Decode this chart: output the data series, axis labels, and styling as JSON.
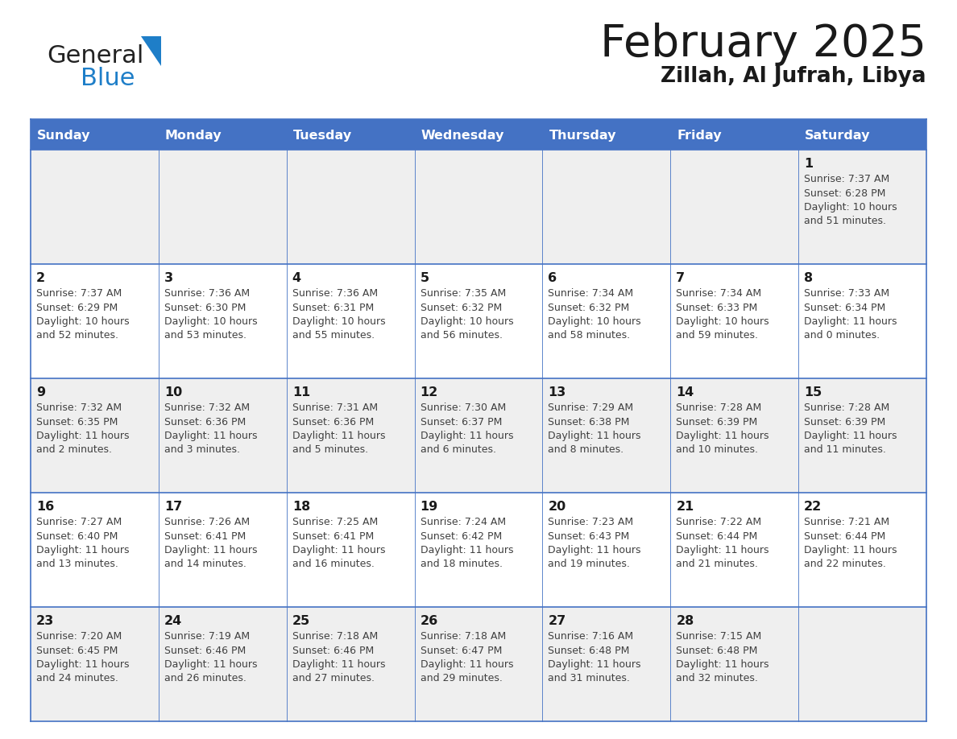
{
  "title": "February 2025",
  "subtitle": "Zillah, Al Jufrah, Libya",
  "header_bg_color": "#4472C4",
  "header_text_color": "#FFFFFF",
  "cell_bg_even": "#EFEFEF",
  "cell_bg_odd": "#FFFFFF",
  "border_color": "#4472C4",
  "text_color": "#404040",
  "day_num_color": "#1a1a1a",
  "days_of_week": [
    "Sunday",
    "Monday",
    "Tuesday",
    "Wednesday",
    "Thursday",
    "Friday",
    "Saturday"
  ],
  "logo_general_color": "#222222",
  "logo_blue_color": "#1e7ec8",
  "logo_triangle_color": "#1e7ec8",
  "calendar_data": [
    [
      null,
      null,
      null,
      null,
      null,
      null,
      {
        "day": 1,
        "sunrise": "7:37 AM",
        "sunset": "6:28 PM",
        "daylight": "10 hours\nand 51 minutes."
      }
    ],
    [
      {
        "day": 2,
        "sunrise": "7:37 AM",
        "sunset": "6:29 PM",
        "daylight": "10 hours\nand 52 minutes."
      },
      {
        "day": 3,
        "sunrise": "7:36 AM",
        "sunset": "6:30 PM",
        "daylight": "10 hours\nand 53 minutes."
      },
      {
        "day": 4,
        "sunrise": "7:36 AM",
        "sunset": "6:31 PM",
        "daylight": "10 hours\nand 55 minutes."
      },
      {
        "day": 5,
        "sunrise": "7:35 AM",
        "sunset": "6:32 PM",
        "daylight": "10 hours\nand 56 minutes."
      },
      {
        "day": 6,
        "sunrise": "7:34 AM",
        "sunset": "6:32 PM",
        "daylight": "10 hours\nand 58 minutes."
      },
      {
        "day": 7,
        "sunrise": "7:34 AM",
        "sunset": "6:33 PM",
        "daylight": "10 hours\nand 59 minutes."
      },
      {
        "day": 8,
        "sunrise": "7:33 AM",
        "sunset": "6:34 PM",
        "daylight": "11 hours\nand 0 minutes."
      }
    ],
    [
      {
        "day": 9,
        "sunrise": "7:32 AM",
        "sunset": "6:35 PM",
        "daylight": "11 hours\nand 2 minutes."
      },
      {
        "day": 10,
        "sunrise": "7:32 AM",
        "sunset": "6:36 PM",
        "daylight": "11 hours\nand 3 minutes."
      },
      {
        "day": 11,
        "sunrise": "7:31 AM",
        "sunset": "6:36 PM",
        "daylight": "11 hours\nand 5 minutes."
      },
      {
        "day": 12,
        "sunrise": "7:30 AM",
        "sunset": "6:37 PM",
        "daylight": "11 hours\nand 6 minutes."
      },
      {
        "day": 13,
        "sunrise": "7:29 AM",
        "sunset": "6:38 PM",
        "daylight": "11 hours\nand 8 minutes."
      },
      {
        "day": 14,
        "sunrise": "7:28 AM",
        "sunset": "6:39 PM",
        "daylight": "11 hours\nand 10 minutes."
      },
      {
        "day": 15,
        "sunrise": "7:28 AM",
        "sunset": "6:39 PM",
        "daylight": "11 hours\nand 11 minutes."
      }
    ],
    [
      {
        "day": 16,
        "sunrise": "7:27 AM",
        "sunset": "6:40 PM",
        "daylight": "11 hours\nand 13 minutes."
      },
      {
        "day": 17,
        "sunrise": "7:26 AM",
        "sunset": "6:41 PM",
        "daylight": "11 hours\nand 14 minutes."
      },
      {
        "day": 18,
        "sunrise": "7:25 AM",
        "sunset": "6:41 PM",
        "daylight": "11 hours\nand 16 minutes."
      },
      {
        "day": 19,
        "sunrise": "7:24 AM",
        "sunset": "6:42 PM",
        "daylight": "11 hours\nand 18 minutes."
      },
      {
        "day": 20,
        "sunrise": "7:23 AM",
        "sunset": "6:43 PM",
        "daylight": "11 hours\nand 19 minutes."
      },
      {
        "day": 21,
        "sunrise": "7:22 AM",
        "sunset": "6:44 PM",
        "daylight": "11 hours\nand 21 minutes."
      },
      {
        "day": 22,
        "sunrise": "7:21 AM",
        "sunset": "6:44 PM",
        "daylight": "11 hours\nand 22 minutes."
      }
    ],
    [
      {
        "day": 23,
        "sunrise": "7:20 AM",
        "sunset": "6:45 PM",
        "daylight": "11 hours\nand 24 minutes."
      },
      {
        "day": 24,
        "sunrise": "7:19 AM",
        "sunset": "6:46 PM",
        "daylight": "11 hours\nand 26 minutes."
      },
      {
        "day": 25,
        "sunrise": "7:18 AM",
        "sunset": "6:46 PM",
        "daylight": "11 hours\nand 27 minutes."
      },
      {
        "day": 26,
        "sunrise": "7:18 AM",
        "sunset": "6:47 PM",
        "daylight": "11 hours\nand 29 minutes."
      },
      {
        "day": 27,
        "sunrise": "7:16 AM",
        "sunset": "6:48 PM",
        "daylight": "11 hours\nand 31 minutes."
      },
      {
        "day": 28,
        "sunrise": "7:15 AM",
        "sunset": "6:48 PM",
        "daylight": "11 hours\nand 32 minutes."
      },
      null
    ]
  ],
  "fig_width": 11.88,
  "fig_height": 9.18,
  "dpi": 100
}
